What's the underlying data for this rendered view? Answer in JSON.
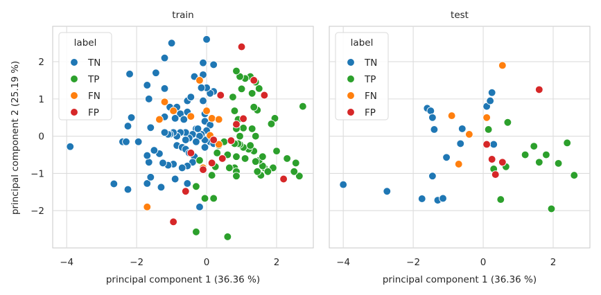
{
  "chart_data": {
    "type": "scatter",
    "xlabel": "principal component 1 (36.36 %)",
    "ylabel": "principal component 2 (25.19 %)",
    "xlim": [
      -4.4,
      3.05
    ],
    "ylim": [
      -3.0,
      2.95
    ],
    "x_ticks": [
      -4,
      -2,
      0,
      2
    ],
    "y_ticks": [
      -2,
      -1,
      0,
      1,
      2
    ],
    "x_tick_labels": [
      "−4",
      "−2",
      "0",
      "2"
    ],
    "y_tick_labels": [
      "−2",
      "−1",
      "0",
      "1",
      "2"
    ],
    "grid": true,
    "legend": {
      "title": "label",
      "placement": "top-left",
      "entries": [
        {
          "name": "TN",
          "color": "#1f77b4"
        },
        {
          "name": "TP",
          "color": "#2ca02c"
        },
        {
          "name": "FN",
          "color": "#ff7f0e"
        },
        {
          "name": "FP",
          "color": "#d62728"
        }
      ]
    },
    "panels": [
      {
        "title": "train",
        "series": [
          {
            "name": "TN",
            "color": "#1f77b4",
            "points": [
              [
                -3.9,
                -0.28
              ],
              [
                -2.65,
                -1.28
              ],
              [
                -2.25,
                -1.43
              ],
              [
                -2.4,
                -0.15
              ],
              [
                -2.3,
                -0.15
              ],
              [
                -2.25,
                0.27
              ],
              [
                -2.15,
                0.5
              ],
              [
                -2.2,
                1.67
              ],
              [
                -1.95,
                -0.15
              ],
              [
                -1.7,
                -1.27
              ],
              [
                -1.6,
                -1.1
              ],
              [
                -1.65,
                -0.7
              ],
              [
                -1.7,
                -0.52
              ],
              [
                -1.6,
                0.23
              ],
              [
                -1.65,
                1.0
              ],
              [
                -1.7,
                1.37
              ],
              [
                -1.45,
                1.7
              ],
              [
                -1.2,
                2.1
              ],
              [
                -1.0,
                2.5
              ],
              [
                -1.2,
                1.28
              ],
              [
                -1.2,
                0.52
              ],
              [
                -1.05,
                0.78
              ],
              [
                -0.85,
                0.78
              ],
              [
                -0.75,
                0.6
              ],
              [
                -0.65,
                0.45
              ],
              [
                -0.55,
                0.95
              ],
              [
                -0.45,
                1.05
              ],
              [
                -0.35,
                1.6
              ],
              [
                -0.1,
                1.65
              ],
              [
                -0.1,
                1.97
              ],
              [
                0.0,
                2.6
              ],
              [
                0.2,
                1.92
              ],
              [
                0.2,
                1.2
              ],
              [
                0.1,
                1.15
              ],
              [
                0.0,
                1.3
              ],
              [
                -0.15,
                1.3
              ],
              [
                -0.1,
                0.95
              ],
              [
                -0.05,
                0.6
              ],
              [
                -0.05,
                0.4
              ],
              [
                0.1,
                0.3
              ],
              [
                0.0,
                0.15
              ],
              [
                0.05,
                -0.05
              ],
              [
                0.1,
                -0.15
              ],
              [
                0.2,
                -0.2
              ],
              [
                -0.05,
                -0.1
              ],
              [
                -0.15,
                0.05
              ],
              [
                -0.3,
                0.2
              ],
              [
                -0.4,
                0.05
              ],
              [
                -0.5,
                -0.05
              ],
              [
                -0.6,
                0.1
              ],
              [
                -0.75,
                0.1
              ],
              [
                -0.85,
                0.0
              ],
              [
                -0.95,
                0.1
              ],
              [
                -1.05,
                0.05
              ],
              [
                -1.1,
                0.05
              ],
              [
                -1.2,
                0.1
              ],
              [
                -0.85,
                -0.25
              ],
              [
                -0.7,
                -0.3
              ],
              [
                -0.6,
                -0.35
              ],
              [
                -0.5,
                -0.45
              ],
              [
                -0.35,
                -0.55
              ],
              [
                -0.4,
                -0.7
              ],
              [
                -0.55,
                -0.8
              ],
              [
                -0.7,
                -0.85
              ],
              [
                -0.95,
                -0.75
              ],
              [
                -1.1,
                -0.78
              ],
              [
                -1.25,
                -0.72
              ],
              [
                -1.35,
                -0.47
              ],
              [
                -1.5,
                -0.38
              ],
              [
                -1.3,
                -1.37
              ],
              [
                -0.9,
                -1.15
              ],
              [
                -0.55,
                -1.27
              ],
              [
                -0.2,
                -1.9
              ],
              [
                -0.9,
                0.48
              ],
              [
                -0.55,
                0.65
              ],
              [
                -0.45,
                0.52
              ],
              [
                -0.25,
                0.2
              ],
              [
                -0.2,
                0.0
              ],
              [
                -0.05,
                -0.3
              ],
              [
                -0.3,
                -0.15
              ],
              [
                -0.6,
                -0.1
              ]
            ]
          },
          {
            "name": "TP",
            "color": "#2ca02c",
            "points": [
              [
                2.75,
                0.8
              ],
              [
                2.65,
                -1.07
              ],
              [
                2.55,
                -0.72
              ],
              [
                2.5,
                -0.95
              ],
              [
                2.3,
                -0.6
              ],
              [
                2.0,
                -0.4
              ],
              [
                1.95,
                0.48
              ],
              [
                1.85,
                0.33
              ],
              [
                1.9,
                -0.85
              ],
              [
                1.65,
                -0.85
              ],
              [
                1.6,
                -0.8
              ],
              [
                1.5,
                -0.65
              ],
              [
                1.55,
                -1.05
              ],
              [
                1.45,
                -0.95
              ],
              [
                1.4,
                -0.68
              ],
              [
                1.35,
                -0.4
              ],
              [
                1.2,
                -0.35
              ],
              [
                1.05,
                -0.3
              ],
              [
                0.95,
                -0.22
              ],
              [
                0.9,
                -0.2
              ],
              [
                1.4,
                0.0
              ],
              [
                1.45,
                0.7
              ],
              [
                1.35,
                0.78
              ],
              [
                1.5,
                1.28
              ],
              [
                1.3,
                1.15
              ],
              [
                1.4,
                1.45
              ],
              [
                1.25,
                1.6
              ],
              [
                1.1,
                1.55
              ],
              [
                1.0,
                1.27
              ],
              [
                0.95,
                1.6
              ],
              [
                0.85,
                1.75
              ],
              [
                0.75,
                1.05
              ],
              [
                0.8,
                0.68
              ],
              [
                0.9,
                0.45
              ],
              [
                1.05,
                0.22
              ],
              [
                0.85,
                0.2
              ],
              [
                0.95,
                0.0
              ],
              [
                0.8,
                -0.2
              ],
              [
                0.85,
                -0.55
              ],
              [
                0.8,
                -0.85
              ],
              [
                0.85,
                -0.95
              ],
              [
                0.85,
                -1.07
              ],
              [
                0.65,
                -0.85
              ],
              [
                0.6,
                -0.5
              ],
              [
                0.5,
                -0.15
              ],
              [
                0.35,
                -0.25
              ],
              [
                0.3,
                -0.45
              ],
              [
                0.25,
                -0.82
              ],
              [
                0.15,
                -1.05
              ],
              [
                0.2,
                -1.67
              ],
              [
                -0.05,
                -1.67
              ],
              [
                -0.3,
                -1.35
              ],
              [
                -0.3,
                -2.57
              ],
              [
                0.6,
                -2.7
              ],
              [
                -0.2,
                -0.65
              ],
              [
                1.25,
                -0.25
              ],
              [
                1.6,
                -0.55
              ],
              [
                1.75,
                -0.95
              ],
              [
                1.1,
                -0.6
              ],
              [
                1.3,
                0.2
              ]
            ]
          },
          {
            "name": "FN",
            "color": "#ff7f0e",
            "points": [
              [
                -1.7,
                -1.9
              ],
              [
                -1.35,
                0.45
              ],
              [
                -1.2,
                0.92
              ],
              [
                -0.95,
                0.68
              ],
              [
                -0.45,
                0.53
              ],
              [
                -0.2,
                1.5
              ],
              [
                0.0,
                0.68
              ],
              [
                0.15,
                0.48
              ],
              [
                0.35,
                0.45
              ],
              [
                0.35,
                -0.22
              ],
              [
                0.1,
                0.02
              ],
              [
                -0.1,
                -0.85
              ]
            ]
          },
          {
            "name": "FP",
            "color": "#d62728",
            "points": [
              [
                1.0,
                2.4
              ],
              [
                1.35,
                1.5
              ],
              [
                1.65,
                1.1
              ],
              [
                0.4,
                1.1
              ],
              [
                0.85,
                0.32
              ],
              [
                1.05,
                0.47
              ],
              [
                0.7,
                -0.12
              ],
              [
                0.45,
                -0.6
              ],
              [
                0.15,
                -0.72
              ],
              [
                0.2,
                -0.1
              ],
              [
                -0.1,
                -0.9
              ],
              [
                -0.45,
                -0.45
              ],
              [
                -0.6,
                -1.48
              ],
              [
                -0.95,
                -2.3
              ],
              [
                2.2,
                -1.15
              ]
            ]
          }
        ]
      },
      {
        "title": "test",
        "series": [
          {
            "name": "TN",
            "color": "#1f77b4",
            "points": [
              [
                -4.0,
                -1.3
              ],
              [
                -2.75,
                -1.48
              ],
              [
                -1.75,
                -1.68
              ],
              [
                -1.3,
                -1.72
              ],
              [
                -1.15,
                -1.67
              ],
              [
                -1.45,
                -1.07
              ],
              [
                -1.05,
                -0.57
              ],
              [
                -0.65,
                -0.2
              ],
              [
                -0.6,
                0.2
              ],
              [
                -1.4,
                0.18
              ],
              [
                -1.6,
                0.75
              ],
              [
                -1.5,
                0.68
              ],
              [
                -1.45,
                0.5
              ],
              [
                0.1,
                0.8
              ],
              [
                0.2,
                0.95
              ],
              [
                0.25,
                1.17
              ],
              [
                0.3,
                -0.22
              ]
            ]
          },
          {
            "name": "TP",
            "color": "#2ca02c",
            "points": [
              [
                0.15,
                0.18
              ],
              [
                0.7,
                0.37
              ],
              [
                0.3,
                -0.88
              ],
              [
                0.65,
                -0.82
              ],
              [
                0.5,
                -1.7
              ],
              [
                1.2,
                -0.5
              ],
              [
                1.45,
                -0.27
              ],
              [
                1.6,
                -0.7
              ],
              [
                1.8,
                -0.5
              ],
              [
                1.95,
                -1.95
              ],
              [
                2.15,
                -0.73
              ],
              [
                2.4,
                -0.18
              ],
              [
                2.6,
                -1.05
              ]
            ]
          },
          {
            "name": "FN",
            "color": "#ff7f0e",
            "points": [
              [
                0.55,
                1.9
              ],
              [
                -0.9,
                0.55
              ],
              [
                -0.4,
                0.05
              ],
              [
                0.1,
                0.5
              ],
              [
                -0.7,
                -0.75
              ]
            ]
          },
          {
            "name": "FP",
            "color": "#d62728",
            "points": [
              [
                1.6,
                1.25
              ],
              [
                0.1,
                -0.22
              ],
              [
                0.25,
                -0.62
              ],
              [
                0.35,
                -1.03
              ],
              [
                0.55,
                -0.7
              ]
            ]
          }
        ]
      }
    ]
  }
}
